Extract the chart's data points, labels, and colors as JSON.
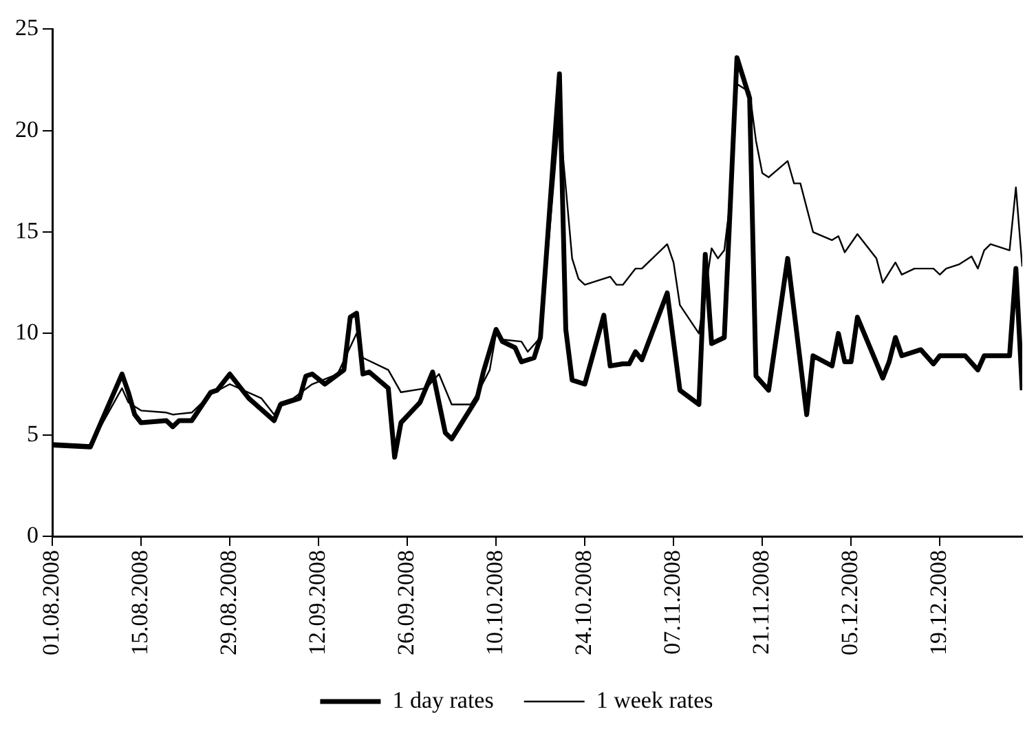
{
  "chart_data": {
    "type": "line",
    "xlim": [
      "2008-08-01",
      "2009-01-01"
    ],
    "ylim": [
      0,
      25
    ],
    "yticks": [
      0,
      5,
      10,
      15,
      20,
      25
    ],
    "xticks": [
      {
        "value": "2008-08-01",
        "label": "01.08.2008"
      },
      {
        "value": "2008-08-15",
        "label": "15.08.2008"
      },
      {
        "value": "2008-08-29",
        "label": "29.08.2008"
      },
      {
        "value": "2008-09-12",
        "label": "12.09.2008"
      },
      {
        "value": "2008-09-26",
        "label": "26.09.2008"
      },
      {
        "value": "2008-10-10",
        "label": "10.10.2008"
      },
      {
        "value": "2008-10-24",
        "label": "24.10.2008"
      },
      {
        "value": "2008-11-07",
        "label": "07.11.2008"
      },
      {
        "value": "2008-11-21",
        "label": "21.11.2008"
      },
      {
        "value": "2008-12-05",
        "label": "05.12.2008"
      },
      {
        "value": "2008-12-19",
        "label": "19.12.2008"
      }
    ],
    "grid": false,
    "legend": "bottom",
    "marker": "none",
    "line_style": "solid",
    "series": [
      {
        "name": "1 day rates",
        "color": "#000000",
        "x": [
          "2008-08-01",
          "2008-08-07",
          "2008-08-12",
          "2008-08-13",
          "2008-08-14",
          "2008-08-15",
          "2008-08-19",
          "2008-08-20",
          "2008-08-21",
          "2008-08-23",
          "2008-08-26",
          "2008-08-27",
          "2008-08-29",
          "2008-09-01",
          "2008-09-05",
          "2008-09-06",
          "2008-09-09",
          "2008-09-10",
          "2008-09-11",
          "2008-09-13",
          "2008-09-16",
          "2008-09-17",
          "2008-09-18",
          "2008-09-19",
          "2008-09-20",
          "2008-09-23",
          "2008-09-24",
          "2008-09-25",
          "2008-09-28",
          "2008-09-30",
          "2008-10-02",
          "2008-10-03",
          "2008-10-06",
          "2008-10-07",
          "2008-10-08",
          "2008-10-10",
          "2008-10-11",
          "2008-10-13",
          "2008-10-14",
          "2008-10-16",
          "2008-10-17",
          "2008-10-20",
          "2008-10-21",
          "2008-10-22",
          "2008-10-24",
          "2008-10-27",
          "2008-10-28",
          "2008-10-30",
          "2008-10-31",
          "2008-11-01",
          "2008-11-02",
          "2008-11-06",
          "2008-11-08",
          "2008-11-11",
          "2008-11-12",
          "2008-11-13",
          "2008-11-15",
          "2008-11-17",
          "2008-11-19",
          "2008-11-20",
          "2008-11-22",
          "2008-11-25",
          "2008-11-28",
          "2008-11-29",
          "2008-12-02",
          "2008-12-03",
          "2008-12-04",
          "2008-12-05",
          "2008-12-06",
          "2008-12-10",
          "2008-12-11",
          "2008-12-12",
          "2008-12-13",
          "2008-12-16",
          "2008-12-18",
          "2008-12-19",
          "2008-12-23",
          "2008-12-25",
          "2008-12-26",
          "2008-12-30",
          "2008-12-31",
          "2009-01-01"
        ],
        "values": [
          4.5,
          4.4,
          8.0,
          7.1,
          6.0,
          5.6,
          5.7,
          5.4,
          5.7,
          5.7,
          7.1,
          7.2,
          8.0,
          6.8,
          5.7,
          6.5,
          6.8,
          7.9,
          8.0,
          7.5,
          8.2,
          10.8,
          11.0,
          8.0,
          8.1,
          7.3,
          3.9,
          5.6,
          6.6,
          8.1,
          5.1,
          4.8,
          6.3,
          6.8,
          8.1,
          10.2,
          9.6,
          9.3,
          8.6,
          8.8,
          9.8,
          22.8,
          10.2,
          7.7,
          7.5,
          10.9,
          8.4,
          8.5,
          8.5,
          9.1,
          8.7,
          12.0,
          7.2,
          6.5,
          13.9,
          9.5,
          9.8,
          23.6,
          21.6,
          7.9,
          7.2,
          13.7,
          6.0,
          8.9,
          8.4,
          10.0,
          8.6,
          8.6,
          10.8,
          7.8,
          8.6,
          9.8,
          8.9,
          9.2,
          8.5,
          8.9,
          8.9,
          8.2,
          8.9,
          8.9,
          13.2,
          7.2
        ]
      },
      {
        "name": "1 week rates",
        "color": "#000000",
        "x": [
          "2008-08-01",
          "2008-08-07",
          "2008-08-12",
          "2008-08-13",
          "2008-08-15",
          "2008-08-19",
          "2008-08-20",
          "2008-08-23",
          "2008-08-26",
          "2008-08-29",
          "2008-09-03",
          "2008-09-05",
          "2008-09-06",
          "2008-09-08",
          "2008-09-11",
          "2008-09-15",
          "2008-09-18",
          "2008-09-19",
          "2008-09-23",
          "2008-09-25",
          "2008-09-29",
          "2008-10-01",
          "2008-10-03",
          "2008-10-06",
          "2008-10-07",
          "2008-10-09",
          "2008-10-10",
          "2008-10-11",
          "2008-10-14",
          "2008-10-15",
          "2008-10-17",
          "2008-10-20",
          "2008-10-22",
          "2008-10-23",
          "2008-10-24",
          "2008-10-28",
          "2008-10-29",
          "2008-10-30",
          "2008-11-01",
          "2008-11-02",
          "2008-11-06",
          "2008-11-07",
          "2008-11-08",
          "2008-11-11",
          "2008-11-13",
          "2008-11-14",
          "2008-11-15",
          "2008-11-16",
          "2008-11-17",
          "2008-11-19",
          "2008-11-20",
          "2008-11-21",
          "2008-11-22",
          "2008-11-25",
          "2008-11-26",
          "2008-11-27",
          "2008-11-29",
          "2008-12-02",
          "2008-12-03",
          "2008-12-04",
          "2008-12-06",
          "2008-12-09",
          "2008-12-10",
          "2008-12-12",
          "2008-12-13",
          "2008-12-15",
          "2008-12-18",
          "2008-12-19",
          "2008-12-20",
          "2008-12-22",
          "2008-12-24",
          "2008-12-25",
          "2008-12-26",
          "2008-12-27",
          "2008-12-30",
          "2008-12-31",
          "2009-01-01"
        ],
        "values": [
          4.6,
          4.5,
          7.3,
          6.6,
          6.2,
          6.1,
          6.0,
          6.1,
          7.0,
          7.5,
          6.8,
          6.0,
          6.6,
          6.8,
          7.5,
          8.0,
          10.0,
          8.8,
          8.2,
          7.1,
          7.3,
          8.0,
          6.5,
          6.5,
          7.0,
          8.2,
          10.0,
          9.7,
          9.6,
          9.1,
          9.8,
          20.7,
          13.7,
          12.7,
          12.4,
          12.8,
          12.4,
          12.4,
          13.2,
          13.2,
          14.4,
          13.5,
          11.4,
          10.0,
          14.2,
          13.7,
          14.1,
          16.7,
          22.3,
          21.9,
          19.5,
          17.9,
          17.7,
          18.5,
          17.4,
          17.4,
          15.0,
          14.6,
          14.8,
          14.0,
          14.9,
          13.7,
          12.5,
          13.5,
          12.9,
          13.2,
          13.2,
          12.9,
          13.2,
          13.4,
          13.8,
          13.2,
          14.1,
          14.4,
          14.1,
          17.2,
          13.3
        ]
      }
    ]
  }
}
